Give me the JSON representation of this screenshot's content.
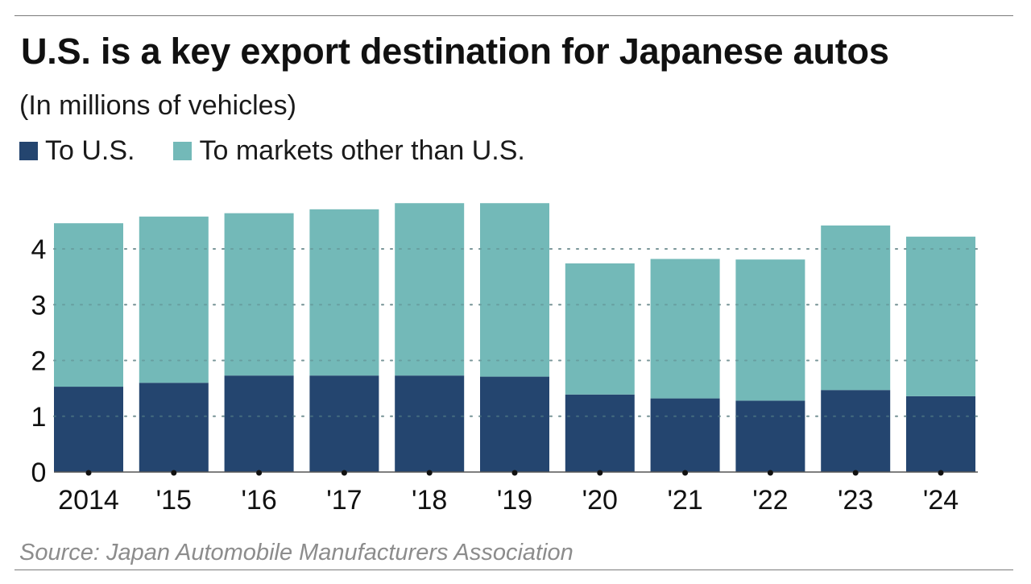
{
  "header": {
    "title": "U.S. is a key export destination for Japanese autos",
    "subtitle": "(In millions of vehicles)"
  },
  "legend": [
    {
      "label": "To U.S.",
      "color": "#24456f"
    },
    {
      "label": "To markets other than U.S.",
      "color": "#73b9b8"
    }
  ],
  "footer": {
    "source": "Source: Japan Automobile Manufacturers Association"
  },
  "chart_data": {
    "type": "bar",
    "stacked": true,
    "title": "U.S. is a key export destination for Japanese autos",
    "subtitle": "(In millions of vehicles)",
    "xlabel": "",
    "ylabel": "",
    "categories": [
      "2014",
      "'15",
      "'16",
      "'17",
      "'18",
      "'19",
      "'20",
      "'21",
      "'22",
      "'23",
      "'24"
    ],
    "series": [
      {
        "name": "To U.S.",
        "color": "#24456f",
        "values": [
          1.53,
          1.6,
          1.73,
          1.73,
          1.73,
          1.71,
          1.39,
          1.32,
          1.28,
          1.47,
          1.36
        ]
      },
      {
        "name": "To markets other than U.S.",
        "color": "#73b9b8",
        "values": [
          2.93,
          2.98,
          2.91,
          2.98,
          3.09,
          3.11,
          2.35,
          2.5,
          2.53,
          2.95,
          2.86
        ]
      }
    ],
    "totals": [
      4.46,
      4.58,
      4.64,
      4.71,
      4.82,
      4.82,
      3.74,
      3.82,
      3.81,
      4.42,
      4.22
    ],
    "ylim": [
      0,
      4.82
    ],
    "yticks": [
      0,
      1,
      2,
      3,
      4
    ],
    "grid": true,
    "legend_position": "top-left",
    "source": "Source: Japan Automobile Manufacturers Association"
  }
}
